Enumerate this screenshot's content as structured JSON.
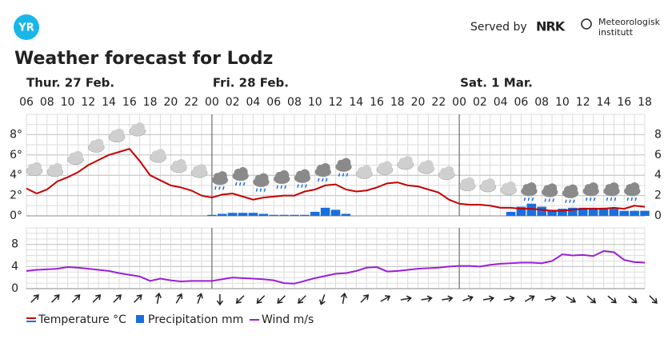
{
  "header": {
    "logo": "YR",
    "served_by": "Served by",
    "nrk": "NRK",
    "met": [
      "Meteorologisk",
      "institutt"
    ]
  },
  "chart_data": {
    "type": "meteogram",
    "title": "Weather forecast for Lodz",
    "days": [
      "Thur. 27 Feb.",
      "Fri. 28 Feb.",
      "Sat. 1 Mar."
    ],
    "categories": [
      "06",
      null,
      "08",
      null,
      "10",
      null,
      "12",
      null,
      "14",
      null,
      "16",
      null,
      "18",
      null,
      "20",
      null,
      "22",
      null,
      "00",
      null,
      "02",
      null,
      "04",
      null,
      "06",
      null,
      "08",
      null,
      "10",
      null,
      "12",
      null,
      "14",
      null,
      "16",
      null,
      "18",
      null,
      "20",
      null,
      "22",
      null,
      "00",
      null,
      "02",
      null,
      "04",
      null,
      "06",
      null,
      "08",
      null,
      "10",
      null,
      "12",
      null,
      "14",
      null,
      "16",
      null,
      "18"
    ],
    "ylim": [
      0,
      10
    ],
    "yticks": [
      {
        "value": 0,
        "label": "0°"
      },
      {
        "value": 2,
        "label": "2°"
      },
      {
        "value": 4,
        "label": "4°"
      },
      {
        "value": 6,
        "label": "6°"
      },
      {
        "value": 8,
        "label": "8°"
      }
    ],
    "y2lim": [
      0,
      10
    ],
    "y2ticks": [
      0,
      2,
      4,
      6,
      8
    ],
    "wind_ylim": [
      0,
      11
    ],
    "wind_yticks": [
      0,
      4,
      8
    ],
    "series": [
      {
        "name": "Temperature °C",
        "color": "#c60000",
        "values": [
          2.7,
          2.2,
          2.6,
          3.4,
          3.8,
          4.3,
          5.0,
          5.5,
          6.0,
          6.3,
          6.6,
          5.4,
          4.0,
          3.5,
          3.0,
          2.8,
          2.5,
          2.0,
          1.8,
          2.1,
          2.2,
          1.9,
          1.6,
          1.8,
          1.9,
          2.0,
          2.0,
          2.4,
          2.6,
          3.0,
          3.1,
          2.6,
          2.4,
          2.5,
          2.8,
          3.2,
          3.3,
          3.0,
          2.9,
          2.6,
          2.3,
          1.6,
          1.2,
          1.1,
          1.1,
          1.0,
          0.8,
          0.8,
          0.7,
          0.7,
          0.6,
          0.5,
          0.5,
          0.6,
          0.7,
          0.7,
          0.7,
          0.8,
          0.7,
          1.0,
          0.9
        ]
      },
      {
        "name": "Precipitation mm",
        "color": "#1a6fde",
        "axis": "y2",
        "values": [
          0,
          0,
          0,
          0,
          0,
          0,
          0,
          0,
          0,
          0,
          0,
          0,
          0,
          0,
          0,
          0,
          0,
          0,
          0.1,
          0.2,
          0.3,
          0.3,
          0.3,
          0.2,
          0.1,
          0.1,
          0.1,
          0.1,
          0.4,
          0.8,
          0.6,
          0.2,
          0,
          0,
          0,
          0,
          0,
          0,
          0,
          0,
          0,
          0,
          0,
          0,
          0,
          0,
          0,
          0.4,
          0.9,
          1.2,
          0.9,
          0.6,
          0.7,
          0.8,
          0.8,
          0.8,
          0.8,
          0.7,
          0.5,
          0.5,
          0.5
        ]
      },
      {
        "name": "Wind m/s",
        "color": "#9b1fd6",
        "axis": "wind",
        "values": [
          3.2,
          3.4,
          3.5,
          3.6,
          3.9,
          3.8,
          3.6,
          3.4,
          3.2,
          2.8,
          2.5,
          2.2,
          1.4,
          1.8,
          1.5,
          1.3,
          1.4,
          1.4,
          1.4,
          1.7,
          2.0,
          1.9,
          1.8,
          1.7,
          1.5,
          1.0,
          0.9,
          1.4,
          1.9,
          2.3,
          2.7,
          2.8,
          3.2,
          3.8,
          3.9,
          3.1,
          3.2,
          3.4,
          3.6,
          3.7,
          3.8,
          4.0,
          4.1,
          4.1,
          4.0,
          4.3,
          4.5,
          4.6,
          4.7,
          4.7,
          4.6,
          5.0,
          6.2,
          6.0,
          6.1,
          5.9,
          6.8,
          6.6,
          5.2,
          4.8,
          4.7
        ]
      }
    ],
    "wind_direction": [
      45,
      45,
      45,
      45,
      45,
      45,
      10,
      30,
      20,
      180,
      225,
      225,
      225,
      225,
      200,
      10,
      45,
      60,
      80,
      80,
      80,
      70,
      80,
      80,
      60,
      80,
      120,
      130,
      130,
      130,
      135
    ]
  }
}
